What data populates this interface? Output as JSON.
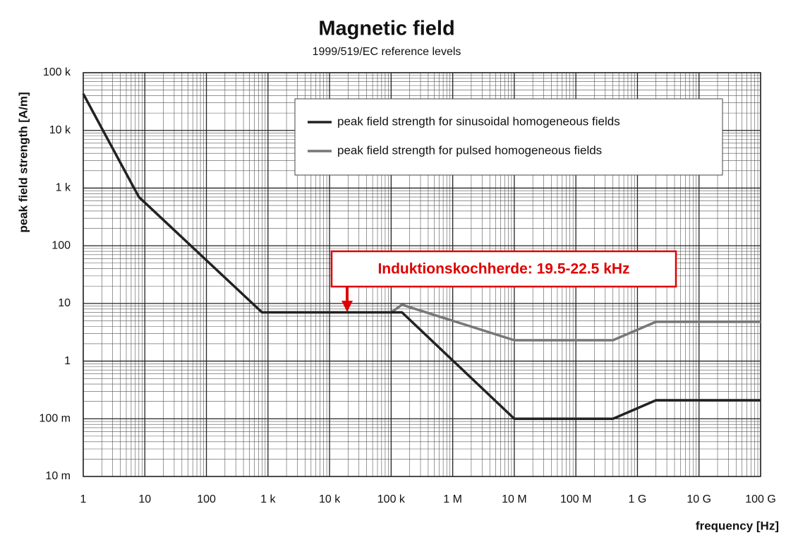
{
  "chart_data": {
    "type": "line",
    "title": "Magnetic field",
    "subtitle": "1999/519/EC reference levels",
    "xlabel": "frequency [Hz]",
    "ylabel": "peak field strength [A/m]",
    "xscale": "log",
    "yscale": "log",
    "grid": true,
    "legend": "upper right",
    "xlim": [
      1,
      100000000000
    ],
    "ylim": [
      0.01,
      100000
    ],
    "xticks": [
      1,
      10,
      100,
      {
        "value": 1000,
        "label": "1 k"
      },
      {
        "value": 10000,
        "label": "10 k"
      },
      {
        "value": 100000,
        "label": "100 k"
      },
      {
        "value": 1000000,
        "label": "1 M"
      },
      {
        "value": 10000000,
        "label": "10 M"
      },
      {
        "value": 100000000,
        "label": "100 M"
      },
      {
        "value": 1000000000,
        "label": "1 G"
      },
      {
        "value": 10000000000,
        "label": "10 G"
      },
      {
        "value": 100000000000,
        "label": "100 G"
      }
    ],
    "yticks": [
      {
        "value": 0.01,
        "label": "10 m"
      },
      {
        "value": 0.1,
        "label": "100 m"
      },
      1,
      10,
      100,
      {
        "value": 1000,
        "label": "1 k"
      },
      {
        "value": 10000,
        "label": "10 k"
      },
      {
        "value": 100000,
        "label": "100 k"
      }
    ],
    "series": [
      {
        "name": "peak field strength for sinusoidal homogeneous fields",
        "color": "#222222",
        "x": [
          1,
          8,
          800,
          150000,
          10000000,
          400000000,
          2000000000,
          100000000000
        ],
        "values": [
          43000,
          700,
          7,
          7,
          0.1,
          0.1,
          0.21,
          0.21
        ]
      },
      {
        "name": "peak field strength for pulsed homogeneous fields",
        "color": "#777777",
        "x": [
          100000,
          150000,
          10000000,
          400000000,
          2000000000,
          100000000000
        ],
        "values": [
          7,
          9.5,
          2.3,
          2.3,
          4.8,
          4.8
        ]
      }
    ],
    "annotation": "Induktionskochherde: 19.5-22.5 kHz"
  }
}
